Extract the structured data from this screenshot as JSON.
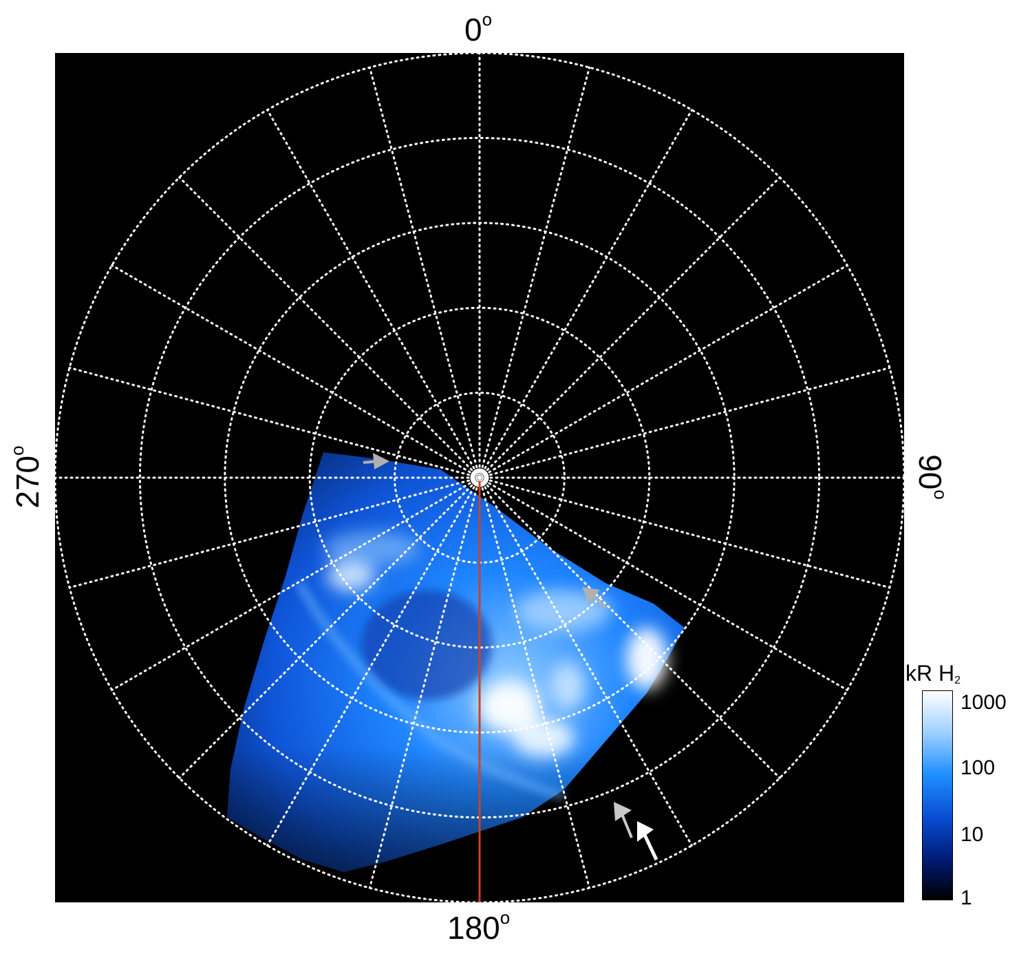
{
  "labels": {
    "top": "0",
    "bottom": "180",
    "left": "270",
    "right": "90",
    "degree_symbol": "o"
  },
  "colorbar": {
    "title": "kR H",
    "subscript": "2",
    "ticks": [
      "1000",
      "100",
      "10",
      "1"
    ],
    "colors": [
      "#ffffff",
      "#9fd0ff",
      "#1e8fff",
      "#0a4fd6",
      "#001c7a",
      "#000000"
    ]
  },
  "colors": {
    "background": "#000000",
    "grid": "#ffffff",
    "meridian_line": "#d0421b",
    "aurora_dim": "#0d3fb8",
    "aurora_mid": "#1e88ff",
    "aurora_bright": "#e8f4ff",
    "arrow_gray": "#b0b0b0",
    "arrow_white": "#ffffff"
  },
  "grid": {
    "ring_count": 5,
    "meridian_count": 24
  }
}
